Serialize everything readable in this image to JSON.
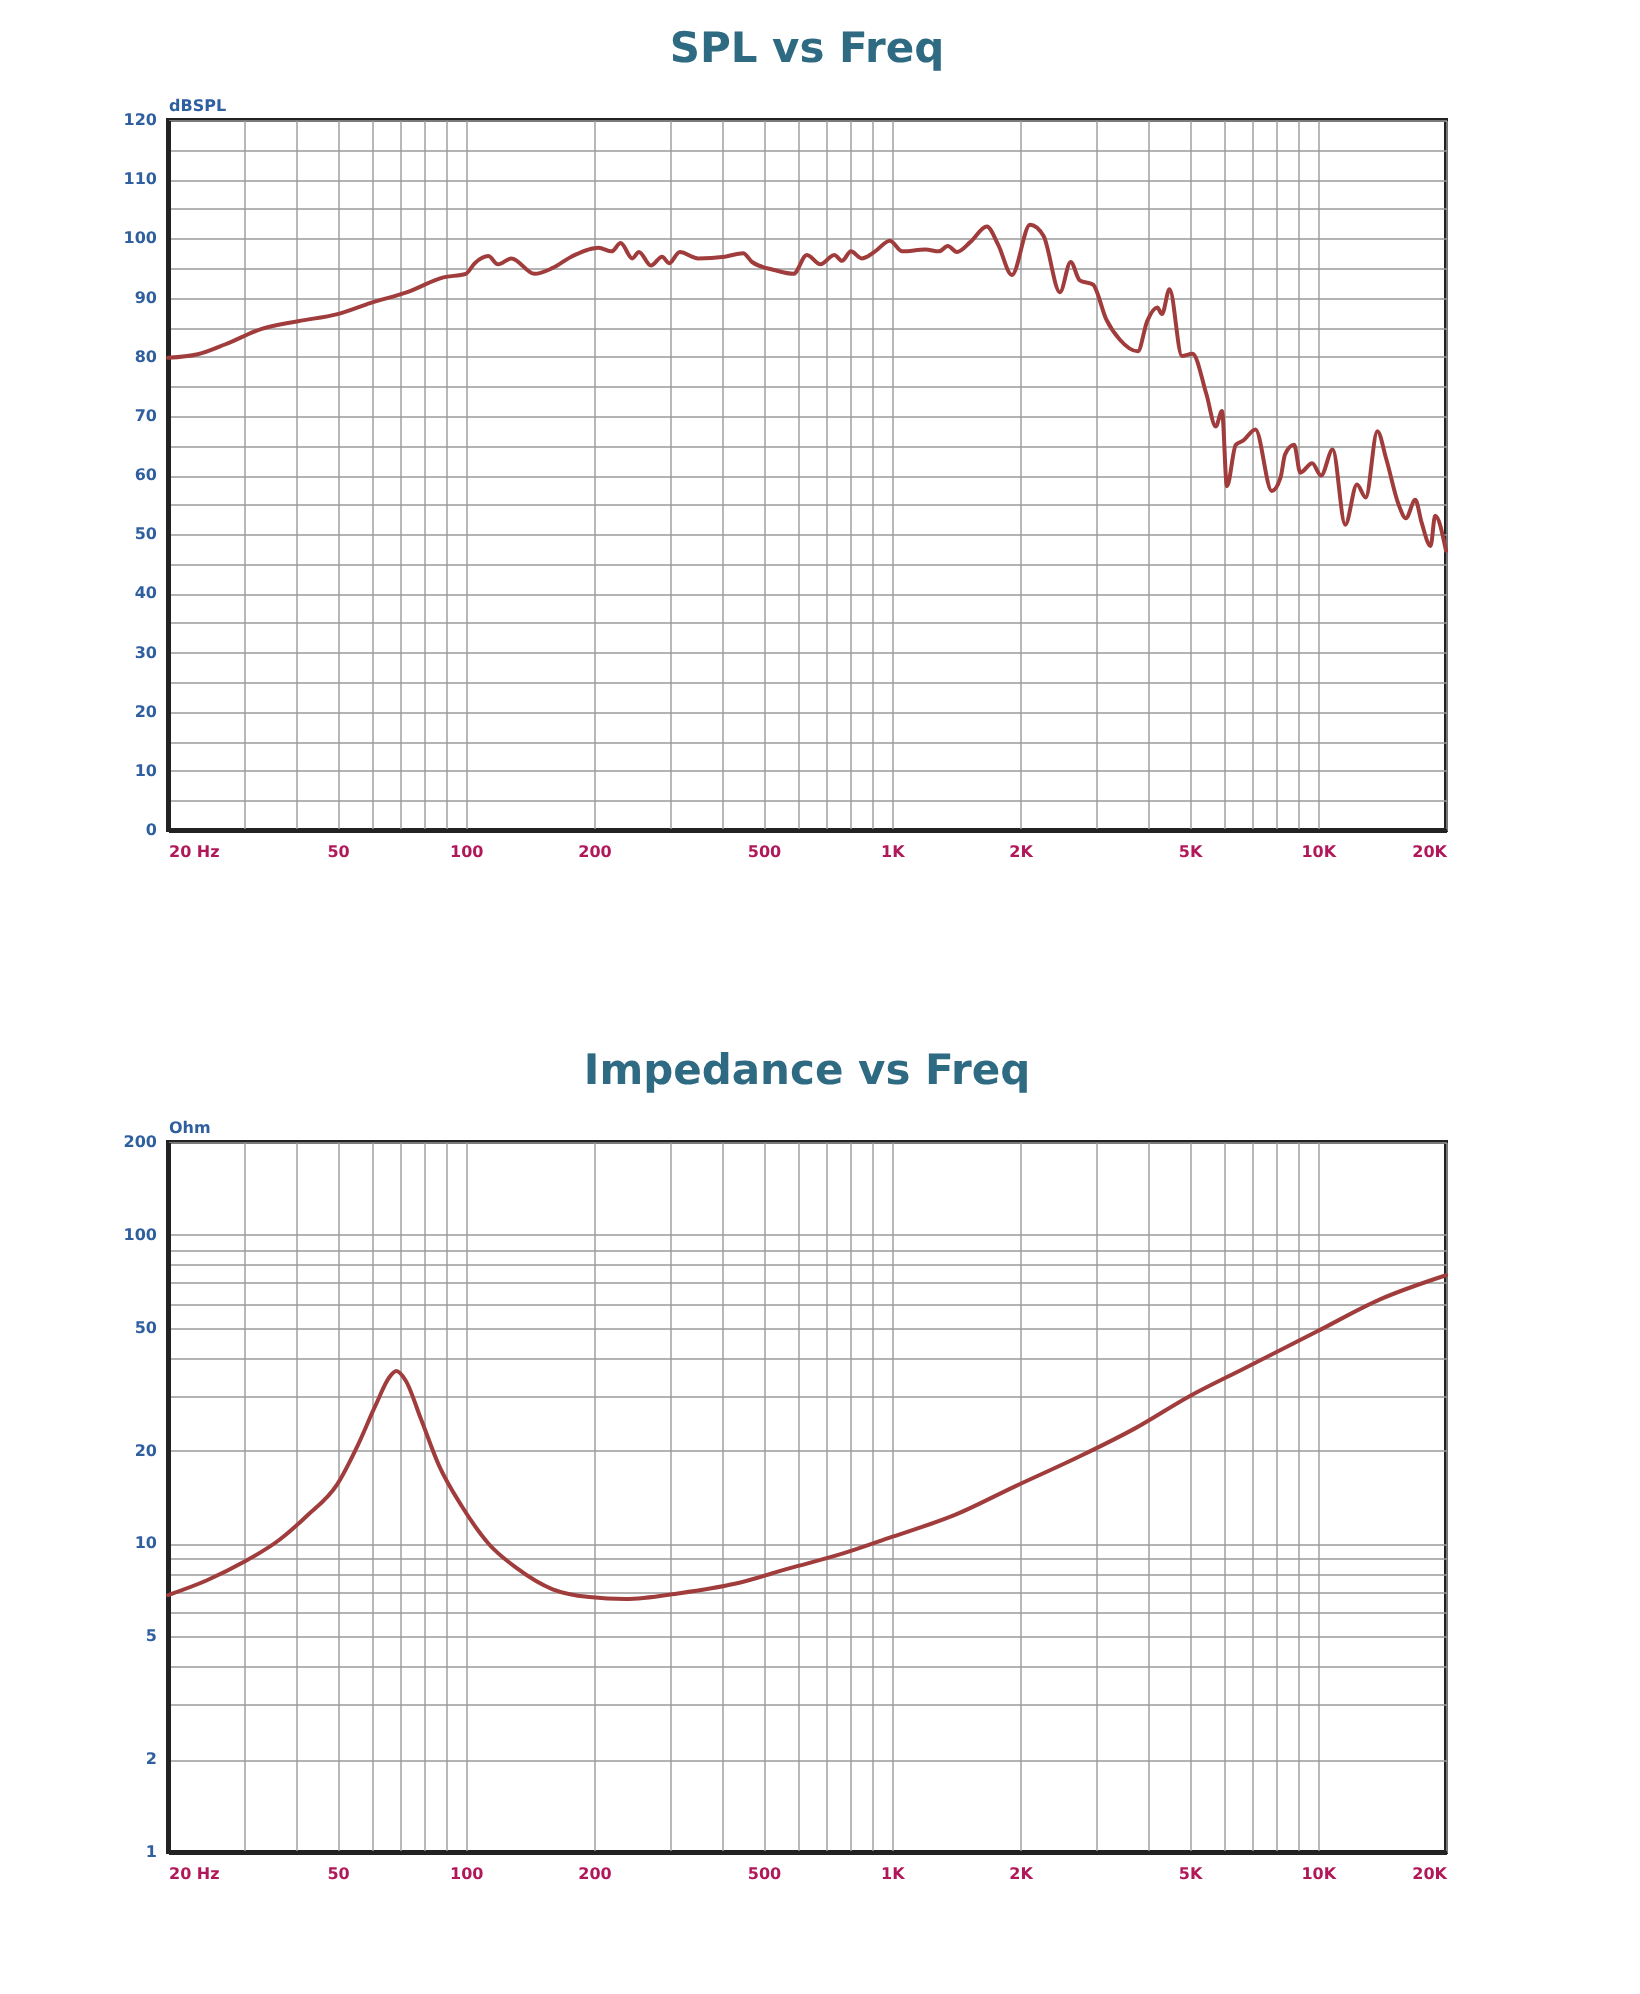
{
  "chart_data": [
    {
      "type": "line",
      "title": "SPL vs Freq",
      "ylabel": "dBSPL",
      "log": "x",
      "grid": true,
      "xlim": [
        20,
        20000
      ],
      "ylim": [
        0,
        120
      ],
      "xticks": [
        {
          "value": 20,
          "label": "20 Hz"
        },
        {
          "value": 30,
          "label": null
        },
        {
          "value": 40,
          "label": null
        },
        50,
        {
          "value": 60,
          "label": null
        },
        {
          "value": 70,
          "label": null
        },
        {
          "value": 80,
          "label": null
        },
        {
          "value": 90,
          "label": null
        },
        100,
        200,
        {
          "value": 300,
          "label": null
        },
        {
          "value": 400,
          "label": null
        },
        500,
        {
          "value": 600,
          "label": null
        },
        {
          "value": 700,
          "label": null
        },
        {
          "value": 800,
          "label": null
        },
        {
          "value": 900,
          "label": null
        },
        {
          "value": 1000,
          "label": "1K"
        },
        {
          "value": 2000,
          "label": "2K"
        },
        {
          "value": 3000,
          "label": null
        },
        {
          "value": 4000,
          "label": null
        },
        {
          "value": 5000,
          "label": "5K"
        },
        {
          "value": 6000,
          "label": null
        },
        {
          "value": 7000,
          "label": null
        },
        {
          "value": 8000,
          "label": null
        },
        {
          "value": 9000,
          "label": null
        },
        {
          "value": 10000,
          "label": "10K"
        },
        {
          "value": 20000,
          "label": "20K"
        }
      ],
      "yticks": [
        0,
        {
          "value": 5,
          "label": null
        },
        10,
        {
          "value": 15,
          "label": null
        },
        20,
        {
          "value": 25,
          "label": null
        },
        30,
        {
          "value": 35,
          "label": null
        },
        40,
        {
          "value": 45,
          "label": null
        },
        50,
        {
          "value": 55,
          "label": null
        },
        60,
        {
          "value": 65,
          "label": null
        },
        70,
        {
          "value": 75,
          "label": null
        },
        80,
        {
          "value": 85,
          "label": null
        },
        90,
        {
          "value": 95,
          "label": null
        },
        100,
        {
          "value": 105,
          "label": null
        },
        110,
        {
          "value": 115,
          "label": null
        },
        120
      ],
      "x": [
        20,
        23.5,
        27.3,
        33.2,
        40.4,
        50,
        59.9,
        72.9,
        88.6,
        100,
        105,
        113,
        119,
        128,
        145,
        160,
        177,
        205,
        220,
        231,
        246,
        255,
        272,
        289,
        300,
        318,
        351,
        406,
        448,
        470,
        533,
        588,
        632,
        680,
        733,
        764,
        802,
        850,
        914,
        990,
        1058,
        1200,
        1290,
        1354,
        1422,
        1530,
        1672,
        1778,
        1914,
        2112,
        2272,
        2482,
        2630,
        2762,
        2966,
        3188,
        3428,
        3780,
        3978,
        4200,
        4308,
        4488,
        4800,
        5080,
        5480,
        5760,
        5960,
        6120,
        6420,
        6680,
        7140,
        7800,
        8180,
        8380,
        8800,
        9100,
        9700,
        10180,
        10840,
        11600,
        12360,
        12960,
        13800,
        14480,
        15480,
        16100,
        16940,
        17540,
        18400,
        18860,
        20000
      ],
      "series": [
        {
          "color": "#a03c3c",
          "values": [
            79.8,
            80.4,
            82.1,
            84.7,
            86,
            87.2,
            89.1,
            90.9,
            93.4,
            94,
            95.8,
            97,
            95.6,
            96.6,
            94,
            95,
            96.9,
            98.4,
            97.8,
            99.2,
            96.6,
            97.7,
            95.4,
            96.9,
            95.8,
            97.7,
            96.6,
            96.9,
            97.5,
            96,
            94.6,
            94,
            97.2,
            95.6,
            97.2,
            96.2,
            97.8,
            96.6,
            97.8,
            99.6,
            97.8,
            98.1,
            97.8,
            98.7,
            97.7,
            99.4,
            102,
            98.9,
            93.8,
            102.3,
            100.4,
            90.9,
            96,
            92.9,
            92.2,
            86.3,
            82.9,
            80.9,
            86,
            88.3,
            87.2,
            91.4,
            80.1,
            80.5,
            73.6,
            68.2,
            70.8,
            58.1,
            65.1,
            65.8,
            67.7,
            57.3,
            59.6,
            63.5,
            65.1,
            60.4,
            62,
            59.9,
            64.3,
            51.6,
            58.4,
            56.2,
            67.4,
            62.7,
            55,
            52.7,
            55.8,
            51.9,
            48,
            53.1,
            47.2
          ]
        }
      ]
    },
    {
      "type": "line",
      "title": "Impedance vs Freq",
      "ylabel": "Ohm",
      "log": "xy",
      "grid": true,
      "xlim": [
        20,
        20000
      ],
      "ylim": [
        1,
        200
      ],
      "xticks": [
        {
          "value": 20,
          "label": "20 Hz"
        },
        {
          "value": 30,
          "label": null
        },
        {
          "value": 40,
          "label": null
        },
        50,
        {
          "value": 60,
          "label": null
        },
        {
          "value": 70,
          "label": null
        },
        {
          "value": 80,
          "label": null
        },
        {
          "value": 90,
          "label": null
        },
        100,
        200,
        {
          "value": 300,
          "label": null
        },
        {
          "value": 400,
          "label": null
        },
        500,
        {
          "value": 600,
          "label": null
        },
        {
          "value": 700,
          "label": null
        },
        {
          "value": 800,
          "label": null
        },
        {
          "value": 900,
          "label": null
        },
        {
          "value": 1000,
          "label": "1K"
        },
        {
          "value": 2000,
          "label": "2K"
        },
        {
          "value": 3000,
          "label": null
        },
        {
          "value": 4000,
          "label": null
        },
        {
          "value": 5000,
          "label": "5K"
        },
        {
          "value": 6000,
          "label": null
        },
        {
          "value": 7000,
          "label": null
        },
        {
          "value": 8000,
          "label": null
        },
        {
          "value": 9000,
          "label": null
        },
        {
          "value": 10000,
          "label": "10K"
        },
        {
          "value": 20000,
          "label": "20K"
        }
      ],
      "yticks": [
        1,
        2,
        {
          "value": 3,
          "label": null
        },
        {
          "value": 4,
          "label": null
        },
        5,
        {
          "value": 6,
          "label": null
        },
        {
          "value": 7,
          "label": null
        },
        {
          "value": 8,
          "label": null
        },
        {
          "value": 9,
          "label": null
        },
        10,
        20,
        {
          "value": 30,
          "label": null
        },
        {
          "value": 40,
          "label": null
        },
        50,
        {
          "value": 60,
          "label": null
        },
        {
          "value": 70,
          "label": null
        },
        {
          "value": 80,
          "label": null
        },
        {
          "value": 90,
          "label": null
        },
        100,
        200
      ],
      "x": [
        20,
        24.7,
        30.1,
        36.6,
        42.4,
        50,
        55.6,
        61.4,
        66.1,
        68.7,
        72.2,
        78.5,
        86.5,
        97.9,
        113,
        132,
        160,
        195,
        237,
        318,
        428,
        574,
        772,
        1000,
        1393,
        1964,
        2772,
        3724,
        5000,
        6717,
        9950,
        14000,
        20000
      ],
      "series": [
        {
          "color": "#a03c3c",
          "values": [
            6.8,
            7.6,
            8.7,
            10.3,
            12.3,
            15.6,
            20.6,
            28,
            34.5,
            36.2,
            33.8,
            25.3,
            17.9,
            13.2,
            10,
            8.3,
            7.1,
            6.7,
            6.6,
            6.9,
            7.4,
            8.3,
            9.3,
            10.5,
            12.3,
            15.4,
            19.2,
            23.6,
            30,
            36.9,
            48.6,
            61.8,
            74
          ]
        }
      ]
    }
  ]
}
